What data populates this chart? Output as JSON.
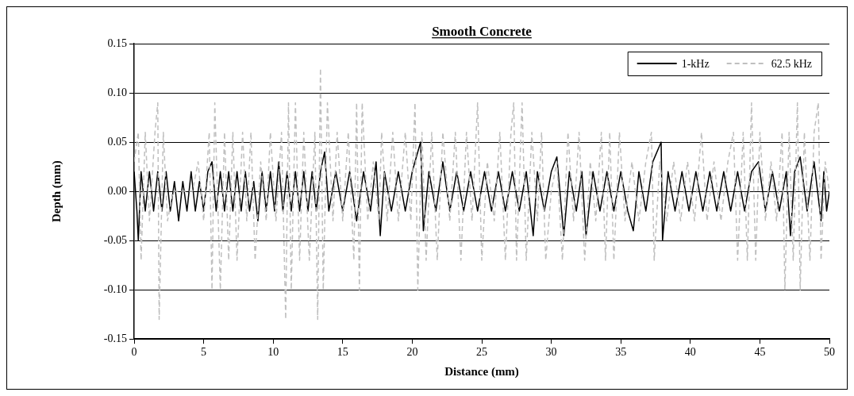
{
  "chart_data": {
    "type": "line",
    "title": "Smooth Concrete",
    "xlabel": "Distance (mm)",
    "ylabel": "Depth (mm)",
    "xlim": [
      0,
      50
    ],
    "xticks": [
      0,
      5,
      10,
      15,
      20,
      25,
      30,
      35,
      40,
      45,
      50
    ],
    "ylim": [
      -0.15,
      0.15
    ],
    "yticks": [
      {
        "value": -0.15,
        "label": "-0.15"
      },
      {
        "value": -0.1,
        "label": "-0.10"
      },
      {
        "value": -0.05,
        "label": "-0.05"
      },
      {
        "value": 0,
        "label": "0.00"
      },
      {
        "value": 0.05,
        "label": "0.05"
      },
      {
        "value": 0.1,
        "label": "0.10"
      },
      {
        "value": 0.15,
        "label": "0.15"
      }
    ],
    "grid": "y",
    "legend": "top right",
    "marker": "none",
    "series": [
      {
        "name": "62.5 kHz",
        "color": "#bfbfbf",
        "line_style": "dashed",
        "x": [
          0,
          0.3,
          0.5,
          0.8,
          1.1,
          1.5,
          1.7,
          1.8,
          2.1,
          2.4,
          2.8,
          3.5,
          4.2,
          4.6,
          5.0,
          5.4,
          5.6,
          5.8,
          6.2,
          6.5,
          6.8,
          7.1,
          7.4,
          7.8,
          8.1,
          8.4,
          8.7,
          9.1,
          9.5,
          9.8,
          10.2,
          10.6,
          10.9,
          11.1,
          11.3,
          11.6,
          11.9,
          12.2,
          12.6,
          13.0,
          13.2,
          13.4,
          13.6,
          13.9,
          14.3,
          14.6,
          15.0,
          15.4,
          15.8,
          16.0,
          16.2,
          16.4,
          16.8,
          17.2,
          17.6,
          17.8,
          18.2,
          18.6,
          19.0,
          19.5,
          19.9,
          20.2,
          20.4,
          20.7,
          21.0,
          21.4,
          21.8,
          22.2,
          22.7,
          23.1,
          23.5,
          23.9,
          24.3,
          24.7,
          25.0,
          25.4,
          25.9,
          26.3,
          26.7,
          27.1,
          27.3,
          27.5,
          27.9,
          28.2,
          28.6,
          29.0,
          29.3,
          29.6,
          30.0,
          30.4,
          30.8,
          31.2,
          31.6,
          32.0,
          32.4,
          32.8,
          33.2,
          33.6,
          33.9,
          34.2,
          34.5,
          34.9,
          35.3,
          35.8,
          36.3,
          36.8,
          37.2,
          37.4,
          37.8,
          38.3,
          38.8,
          39.3,
          39.8,
          40.3,
          40.8,
          41.2,
          41.7,
          42.2,
          42.7,
          43.1,
          43.4,
          43.8,
          44.1,
          44.4,
          44.7,
          45.0,
          45.4,
          45.8,
          46.2,
          46.6,
          46.8,
          47.1,
          47.4,
          47.7,
          47.9,
          48.2,
          48.6,
          48.9,
          49.2,
          49.4,
          49.7,
          50
        ],
        "values": [
          0.03,
          0.06,
          -0.07,
          0.06,
          -0.03,
          0.06,
          0.09,
          -0.13,
          0.06,
          -0.03,
          0,
          0,
          0,
          0.03,
          -0.03,
          0.06,
          -0.1,
          0.09,
          -0.1,
          0.06,
          -0.07,
          0.06,
          -0.07,
          0.06,
          -0.03,
          0.06,
          -0.07,
          0.03,
          -0.03,
          0.06,
          -0.03,
          0.06,
          -0.13,
          0.09,
          -0.1,
          0.09,
          -0.07,
          0.06,
          -0.07,
          0.06,
          -0.13,
          0.125,
          -0.1,
          0.09,
          -0.03,
          0.06,
          -0.03,
          0.06,
          -0.07,
          0.09,
          -0.1,
          0.09,
          -0.03,
          0.03,
          -0.03,
          0.06,
          -0.03,
          0.06,
          -0.03,
          0.06,
          -0.03,
          0.09,
          -0.1,
          0.06,
          -0.07,
          0.06,
          -0.07,
          0.06,
          -0.03,
          0.06,
          -0.07,
          0.06,
          -0.03,
          0.09,
          -0.07,
          0.03,
          -0.03,
          0.06,
          -0.07,
          0.06,
          0.09,
          -0.07,
          0.09,
          -0.07,
          0.06,
          -0.03,
          0.06,
          -0.07,
          0,
          0.03,
          -0.07,
          0.06,
          -0.03,
          0.06,
          -0.07,
          0.03,
          -0.03,
          0.06,
          -0.07,
          0.06,
          -0.07,
          0.06,
          -0.03,
          0.03,
          -0.03,
          0.03,
          0.06,
          -0.07,
          0.03,
          -0.03,
          0.03,
          -0.03,
          0.03,
          -0.03,
          0.06,
          -0.03,
          0.03,
          -0.03,
          0.03,
          0.06,
          -0.07,
          0.06,
          -0.07,
          0.09,
          -0.07,
          0.06,
          -0.03,
          0.03,
          -0.03,
          0.06,
          -0.1,
          0.06,
          -0.07,
          0.09,
          -0.1,
          0.06,
          -0.07,
          0.06,
          0.09,
          -0.07,
          0.03,
          0
        ]
      },
      {
        "name": "1-kHz",
        "color": "#000000",
        "line_style": "solid",
        "x": [
          0,
          0.2,
          0.3,
          0.5,
          0.8,
          1.1,
          1.4,
          1.7,
          2.0,
          2.3,
          2.6,
          2.9,
          3.2,
          3.5,
          3.8,
          4.1,
          4.4,
          4.7,
          5.0,
          5.3,
          5.6,
          5.9,
          6.2,
          6.5,
          6.8,
          7.1,
          7.4,
          7.7,
          8.0,
          8.3,
          8.6,
          8.9,
          9.2,
          9.5,
          9.8,
          10.1,
          10.4,
          10.7,
          11.0,
          11.3,
          11.6,
          11.9,
          12.2,
          12.5,
          12.8,
          13.1,
          13.4,
          13.7,
          14.0,
          14.5,
          15.0,
          15.5,
          16.0,
          16.5,
          17.0,
          17.4,
          17.7,
          18.0,
          18.5,
          19.0,
          19.5,
          20.0,
          20.6,
          20.8,
          21.2,
          21.7,
          22.2,
          22.7,
          23.2,
          23.7,
          24.2,
          24.7,
          25.2,
          25.7,
          26.2,
          26.7,
          27.2,
          27.7,
          28.2,
          28.7,
          29.0,
          29.5,
          30.0,
          30.4,
          30.9,
          31.3,
          31.8,
          32.2,
          32.5,
          33.0,
          33.5,
          34.0,
          34.5,
          35.0,
          35.5,
          35.9,
          36.3,
          36.8,
          37.3,
          37.9,
          38.0,
          38.4,
          38.9,
          39.4,
          39.9,
          40.4,
          40.9,
          41.4,
          41.9,
          42.4,
          42.9,
          43.4,
          43.9,
          44.4,
          44.9,
          45.4,
          45.9,
          46.4,
          46.9,
          47.2,
          47.5,
          47.9,
          48.4,
          48.9,
          49.4,
          49.6,
          49.8,
          50
        ],
        "values": [
          0.02,
          -0.02,
          -0.05,
          0.02,
          -0.02,
          0.02,
          -0.02,
          0.02,
          -0.02,
          0.02,
          -0.02,
          0.01,
          -0.03,
          0.01,
          -0.02,
          0.02,
          -0.02,
          0.01,
          -0.02,
          0.02,
          0.03,
          -0.02,
          0.02,
          -0.02,
          0.02,
          -0.02,
          0.02,
          -0.02,
          0.02,
          -0.02,
          0.01,
          -0.03,
          0.02,
          -0.02,
          0.02,
          -0.02,
          0.03,
          -0.02,
          0.02,
          -0.02,
          0.02,
          -0.02,
          0.02,
          -0.02,
          0.02,
          -0.02,
          0.02,
          0.04,
          -0.02,
          0.02,
          -0.02,
          0.02,
          -0.03,
          0.02,
          -0.02,
          0.03,
          -0.045,
          0.02,
          -0.02,
          0.02,
          -0.02,
          0.02,
          0.05,
          -0.04,
          0.02,
          -0.02,
          0.03,
          -0.02,
          0.02,
          -0.02,
          0.02,
          -0.02,
          0.02,
          -0.02,
          0.02,
          -0.02,
          0.02,
          -0.02,
          0.02,
          -0.045,
          0.02,
          -0.02,
          0.02,
          0.035,
          -0.045,
          0.02,
          -0.02,
          0.02,
          -0.045,
          0.02,
          -0.02,
          0.02,
          -0.02,
          0.02,
          -0.02,
          -0.04,
          0.02,
          -0.02,
          0.03,
          0.05,
          -0.05,
          0.02,
          -0.02,
          0.02,
          -0.02,
          0.02,
          -0.02,
          0.02,
          -0.02,
          0.02,
          -0.02,
          0.02,
          -0.02,
          0.02,
          0.03,
          -0.02,
          0.02,
          -0.02,
          0.02,
          -0.045,
          0.02,
          0.035,
          -0.02,
          0.03,
          -0.03,
          0.02,
          -0.02,
          0
        ]
      }
    ]
  }
}
